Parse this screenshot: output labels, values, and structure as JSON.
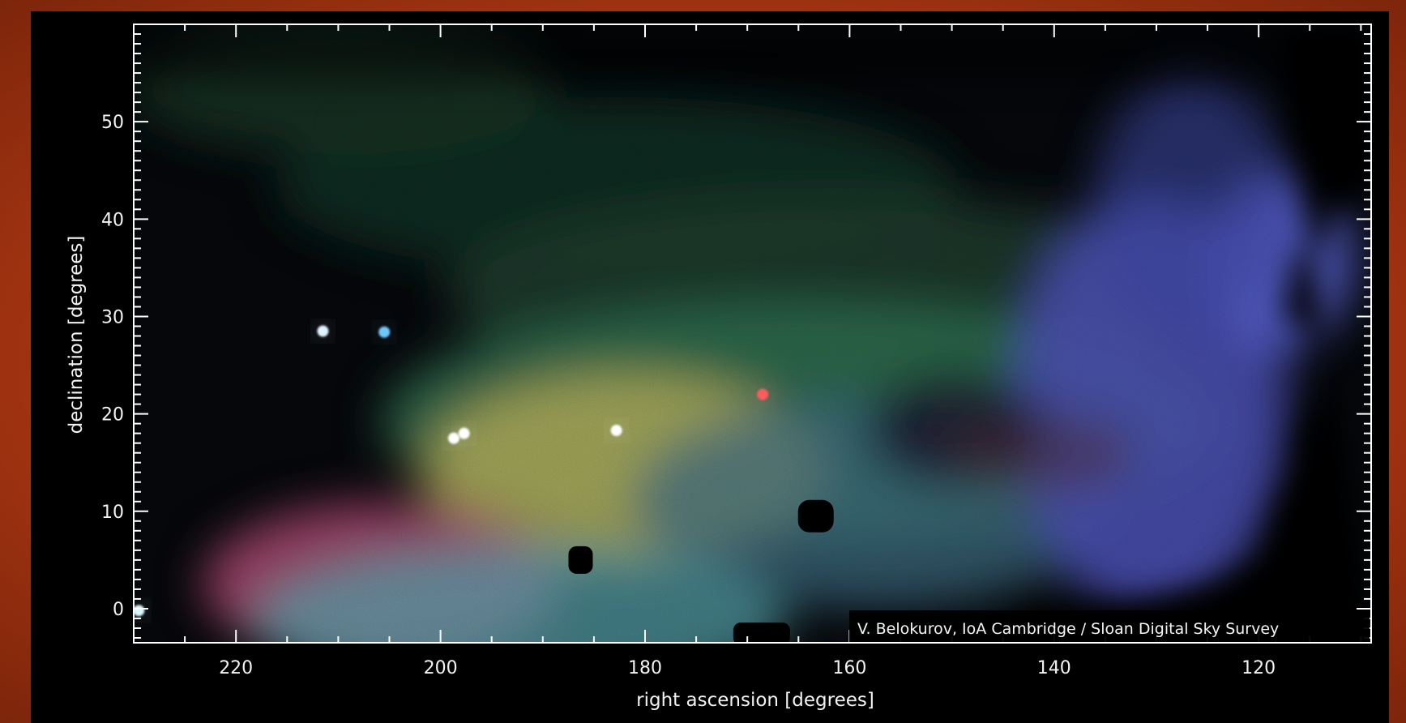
{
  "figure": {
    "x_axis": {
      "label": "right ascension [degrees]",
      "range": [
        230,
        109
      ],
      "ticks": [
        220,
        200,
        180,
        160,
        140,
        120
      ],
      "minor_step": 5
    },
    "y_axis": {
      "label": "declination [degrees]",
      "range": [
        -3.5,
        60
      ],
      "ticks": [
        0,
        10,
        20,
        30,
        40,
        50
      ],
      "minor_step": 1
    },
    "credit": "V. Belokurov, IoA Cambridge / Sloan Digital Sky Survey"
  },
  "colors": {
    "outer_background": "#b8420f",
    "panel": "#000000",
    "axis": "#ffffff",
    "stream_green": "#6fb56a",
    "stream_pink": "#d9587a",
    "stream_yellow": "#d7c85a",
    "stream_cyan": "#58b4c4",
    "halo_blue": "#4e5cc6"
  },
  "features": {
    "bright_points": [
      {
        "ra": 211.5,
        "dec": 28.5,
        "color": "#dff4ff"
      },
      {
        "ra": 205.5,
        "dec": 28.4,
        "color": "#6fc8ff"
      },
      {
        "ra": 198.7,
        "dec": 17.5,
        "color": "#ffffff"
      },
      {
        "ra": 197.7,
        "dec": 18.0,
        "color": "#ffffff"
      },
      {
        "ra": 182.8,
        "dec": 18.3,
        "color": "#ffffff"
      },
      {
        "ra": 168.5,
        "dec": 22.0,
        "color": "#ff5b5b"
      },
      {
        "ra": 229.5,
        "dec": -0.2,
        "color": "#d8f7ff"
      }
    ],
    "masked_regions": [
      {
        "ra": 186.3,
        "dec": 5.0
      },
      {
        "ra": 163.3,
        "dec": 9.5
      },
      {
        "ra": 168.6,
        "dec": -2.6
      }
    ]
  }
}
